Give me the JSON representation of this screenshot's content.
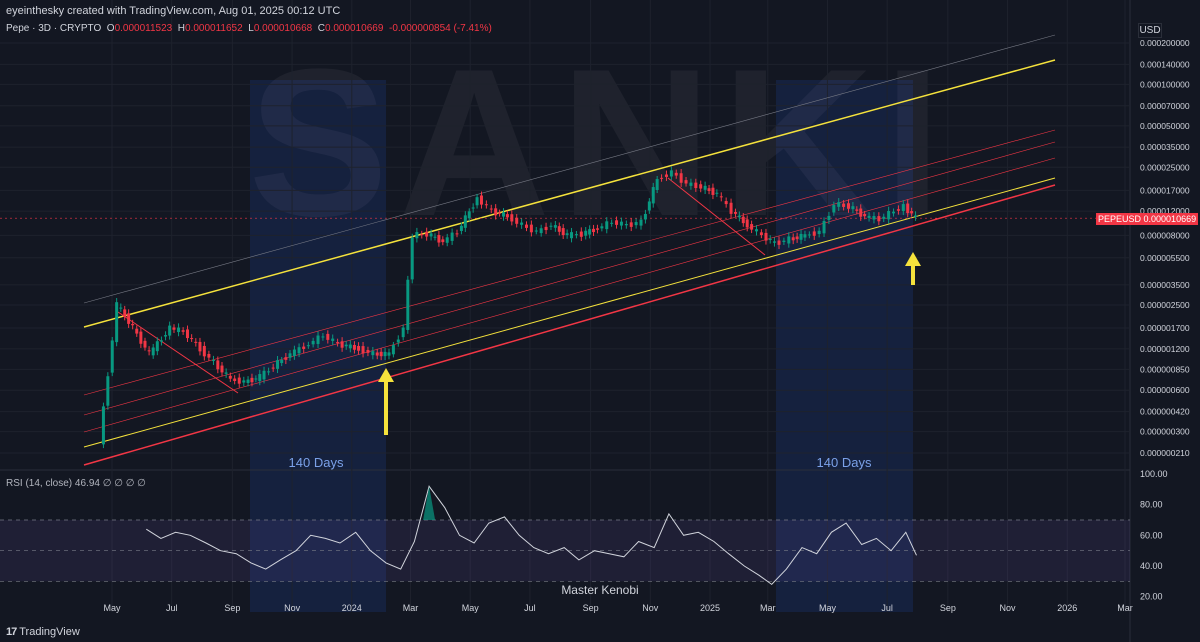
{
  "header": {
    "credit": "eyeinthesky created with TradingView.com, Aug 01, 2025 00:12 UTC",
    "symbol": "Pepe · 3D · CRYPTO",
    "open_label": "O",
    "open": "0.000011523",
    "high_label": "H",
    "high": "0.000011652",
    "low_label": "L",
    "low": "0.000010668",
    "close_label": "C",
    "close": "0.000010669",
    "change": "-0.000000854 (-7.41%)"
  },
  "currency": "USD",
  "price_tag": {
    "symbol": "PEPEUSD",
    "value": "0.000010669"
  },
  "watermark": "SANKI",
  "annotations": {
    "days_left": "140 Days",
    "days_right": "140 Days",
    "signature": "Master Kenobi"
  },
  "rsi_legend": "RSI (14, close)  46.94  ∅  ∅  ∅  ∅",
  "footer": {
    "brand": "TradingView",
    "logo": "17"
  },
  "colors": {
    "background": "#131722",
    "up": "#089981",
    "down": "#f23645",
    "channel": "#f5e23c",
    "support": "#f23645",
    "highlight": "#2962ff",
    "rsi": "#d1d4dc"
  },
  "chart_data": [
    {
      "type": "line",
      "title": "",
      "y_scale": "log",
      "x_ticks": [
        "May",
        "Jul",
        "Sep",
        "Nov",
        "2024",
        "Mar",
        "May",
        "Jul",
        "Sep",
        "Nov",
        "2025",
        "Mar",
        "May",
        "Jul",
        "Sep",
        "Nov",
        "2026",
        "Mar"
      ],
      "y_ticks": [
        "0.000200000",
        "0.000140000",
        "0.000100000",
        "0.000070000",
        "0.000050000",
        "0.000035000",
        "0.000025000",
        "0.000017000",
        "0.000012000",
        "0.000008000",
        "0.000005500",
        "0.000003500",
        "0.000002500",
        "0.000001700",
        "0.000001200",
        "0.000000850",
        "0.000000600",
        "0.000000420",
        "0.000000300",
        "0.000000210"
      ],
      "series": [
        {
          "x": [
            "2023-04-20",
            "2023-05-08",
            "2023-05-20",
            "2023-06-10",
            "2023-07-01",
            "2023-07-15",
            "2023-08-01",
            "2023-08-15",
            "2023-09-01",
            "2023-09-15",
            "2023-10-01",
            "2023-10-15",
            "2023-11-01",
            "2023-11-20",
            "2023-12-05",
            "2023-12-20",
            "2024-01-10",
            "2024-01-25",
            "2024-02-10",
            "2024-02-25",
            "2024-03-05",
            "2024-03-20",
            "2024-04-05",
            "2024-04-20",
            "2024-05-10",
            "2024-05-25",
            "2024-06-10",
            "2024-06-25",
            "2024-07-10",
            "2024-07-25",
            "2024-08-10",
            "2024-08-25",
            "2024-09-10",
            "2024-09-25",
            "2024-10-10",
            "2024-10-25",
            "2024-11-10",
            "2024-11-25",
            "2024-12-10",
            "2024-12-25",
            "2025-01-10",
            "2025-01-25",
            "2025-02-10",
            "2025-02-25",
            "2025-03-10",
            "2025-03-25",
            "2025-04-10",
            "2025-04-25",
            "2025-05-10",
            "2025-05-25",
            "2025-06-10",
            "2025-06-25",
            "2025-07-10",
            "2025-07-20",
            "2025-08-01"
          ],
          "close": [
            2.5e-07,
            2.5e-06,
            1.9e-06,
            1.1e-06,
            1.7e-06,
            1.6e-06,
            1.2e-06,
            9.5e-07,
            7.2e-07,
            6.9e-07,
            7.5e-07,
            9e-07,
            1.1e-06,
            1.3e-06,
            1.5e-06,
            1.3e-06,
            1.2e-06,
            1.1e-06,
            1.1e-06,
            1.7e-06,
            8e-06,
            8.2e-06,
            7.2e-06,
            8.5e-06,
            1.5e-05,
            1.2e-05,
            1.1e-05,
            9.5e-06,
            8.5e-06,
            9.5e-06,
            8e-06,
            8.2e-06,
            9e-06,
            1e-05,
            9.5e-06,
            1e-05,
            2.05e-05,
            2.3e-05,
            1.9e-05,
            1.8e-05,
            1.6e-05,
            1.2e-05,
            9.5e-06,
            8e-06,
            7e-06,
            7.5e-06,
            8e-06,
            8.5e-06,
            1.35e-05,
            1.3e-05,
            1.1e-05,
            1.05e-05,
            1.2e-05,
            1.3e-05,
            1.07e-05
          ]
        }
      ]
    },
    {
      "type": "line",
      "title": "",
      "y_ticks": [
        "100.00",
        "80.00",
        "60.00",
        "40.00",
        "20.00"
      ],
      "ylim": [
        10,
        100
      ],
      "bands": [
        30,
        50,
        70
      ],
      "series": [
        {
          "x": [
            "2023-06-05",
            "2023-06-20",
            "2023-07-05",
            "2023-07-20",
            "2023-08-05",
            "2023-08-20",
            "2023-09-05",
            "2023-09-20",
            "2023-10-05",
            "2023-10-20",
            "2023-11-05",
            "2023-11-20",
            "2023-12-05",
            "2023-12-20",
            "2024-01-05",
            "2024-01-20",
            "2024-02-05",
            "2024-02-20",
            "2024-03-05",
            "2024-03-20",
            "2024-04-05",
            "2024-04-20",
            "2024-05-05",
            "2024-05-20",
            "2024-06-05",
            "2024-06-20",
            "2024-07-05",
            "2024-07-20",
            "2024-08-05",
            "2024-08-20",
            "2024-09-05",
            "2024-09-20",
            "2024-10-05",
            "2024-10-20",
            "2024-11-05",
            "2024-11-20",
            "2024-12-05",
            "2024-12-20",
            "2025-01-05",
            "2025-01-20",
            "2025-02-05",
            "2025-02-20",
            "2025-03-05",
            "2025-03-20",
            "2025-04-05",
            "2025-04-20",
            "2025-05-05",
            "2025-05-20",
            "2025-06-05",
            "2025-06-20",
            "2025-07-05",
            "2025-07-20",
            "2025-07-31"
          ],
          "rsi": [
            64,
            58,
            62,
            60,
            55,
            50,
            48,
            42,
            38,
            44,
            50,
            60,
            58,
            55,
            62,
            50,
            42,
            38,
            56,
            92,
            78,
            60,
            55,
            68,
            72,
            60,
            52,
            48,
            52,
            44,
            50,
            48,
            46,
            56,
            52,
            74,
            60,
            62,
            56,
            48,
            40,
            34,
            28,
            38,
            52,
            48,
            62,
            68,
            54,
            58,
            50,
            62,
            47
          ]
        }
      ]
    }
  ]
}
